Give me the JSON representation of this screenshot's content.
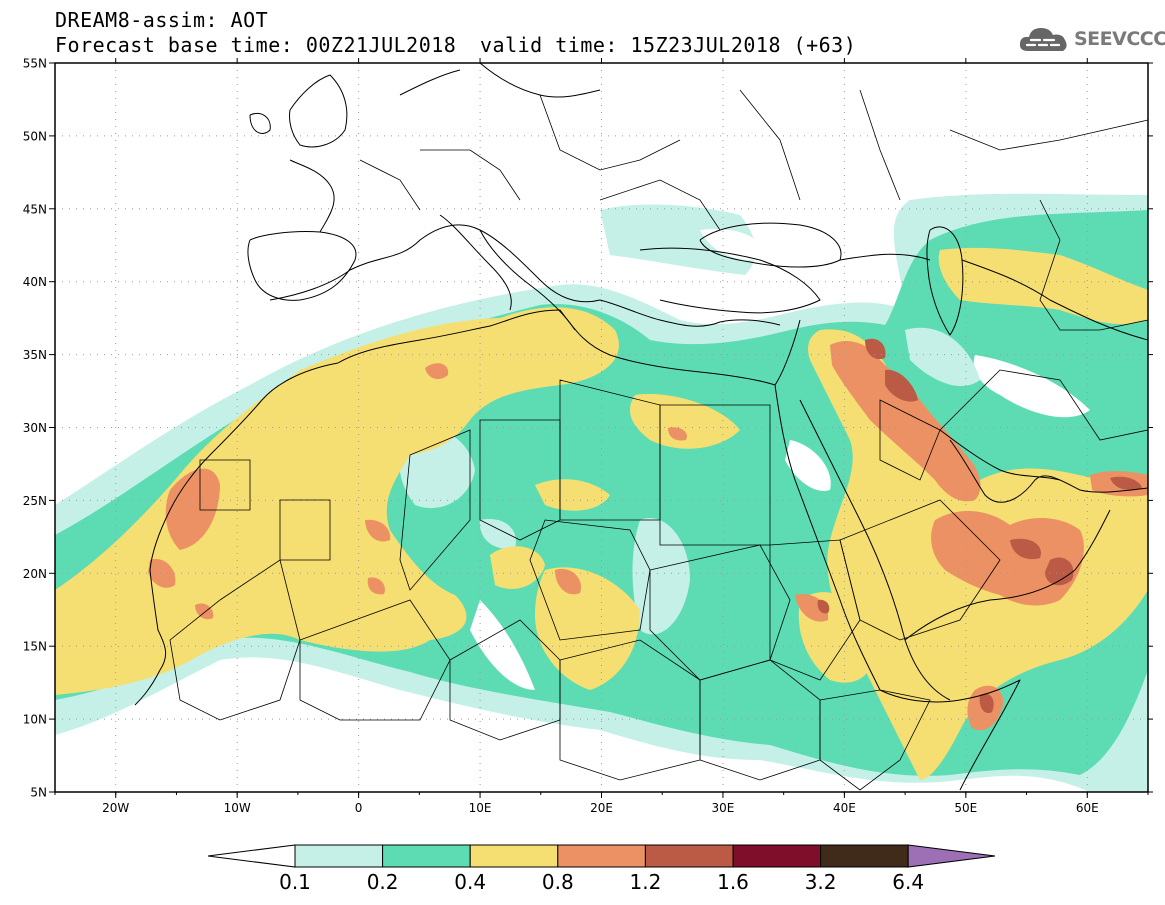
{
  "header": {
    "title": "DREAM8-assim: AOT",
    "base_time": "Forecast base time: 00Z21JUL2018",
    "valid_time": "valid time: 15Z23JUL2018 (+63)",
    "logo_text": "SEEVCCC"
  },
  "map": {
    "projection": "lat-lon",
    "lon_range": [
      -25,
      65
    ],
    "lat_range": [
      5,
      55
    ],
    "lat_ticks": [
      "5N",
      "10N",
      "15N",
      "20N",
      "25N",
      "30N",
      "35N",
      "40N",
      "45N",
      "50N",
      "55N"
    ],
    "lon_ticks": [
      "20W",
      "10W",
      "0",
      "10E",
      "20E",
      "30E",
      "40E",
      "50E",
      "60E"
    ],
    "grid": "dotted",
    "variable": "aerosol optical thickness"
  },
  "colorbar": {
    "levels": [
      "0.1",
      "0.2",
      "0.4",
      "0.8",
      "1.2",
      "1.6",
      "3.2",
      "6.4"
    ],
    "colors": [
      "#c4f0e8",
      "#5ddcb4",
      "#f6df72",
      "#ec9163",
      "#bb5a45",
      "#7e0e2a",
      "#402a1a",
      "#9d6fb4"
    ],
    "under_color": "#ffffff"
  }
}
